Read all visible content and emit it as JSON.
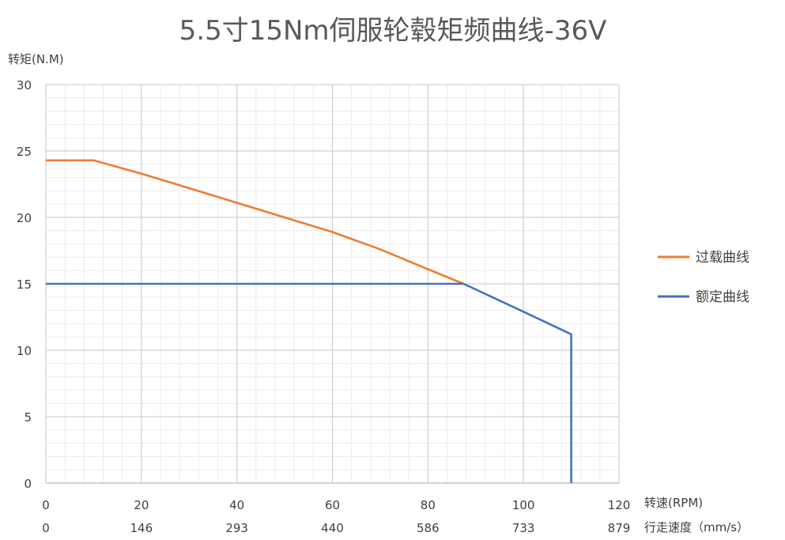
{
  "chart_data": {
    "type": "line",
    "title": "5.5寸15Nm伺服轮毂矩频曲线-36V",
    "ylabel": "转矩(N.M)",
    "xlabel": "转速(RPM)",
    "xlabel_secondary": "行走速度（mm/s）",
    "xlim": [
      0,
      120
    ],
    "ylim": [
      0,
      30
    ],
    "x_ticks": [
      "0",
      "20",
      "40",
      "60",
      "80",
      "100",
      "120"
    ],
    "x_ticks_secondary": [
      "0",
      "146",
      "293",
      "440",
      "586",
      "733",
      "879"
    ],
    "y_ticks": [
      "0",
      "5",
      "10",
      "15",
      "20",
      "25",
      "30"
    ],
    "grid": true,
    "legend_position": "right",
    "series": [
      {
        "name": "过载曲线",
        "color": "#ed7d31",
        "points": [
          [
            0,
            24.3
          ],
          [
            10,
            24.3
          ],
          [
            20,
            23.3
          ],
          [
            30,
            22.2
          ],
          [
            40,
            21.1
          ],
          [
            50,
            20.0
          ],
          [
            60,
            18.9
          ],
          [
            70,
            17.6
          ],
          [
            80,
            16.1
          ],
          [
            87.5,
            15.0
          ]
        ]
      },
      {
        "name": "额定曲线",
        "color": "#4472c4",
        "points": [
          [
            0,
            15.0
          ],
          [
            87.5,
            15.0
          ],
          [
            100,
            12.9
          ],
          [
            110,
            11.2
          ],
          [
            110,
            0
          ]
        ]
      }
    ]
  }
}
